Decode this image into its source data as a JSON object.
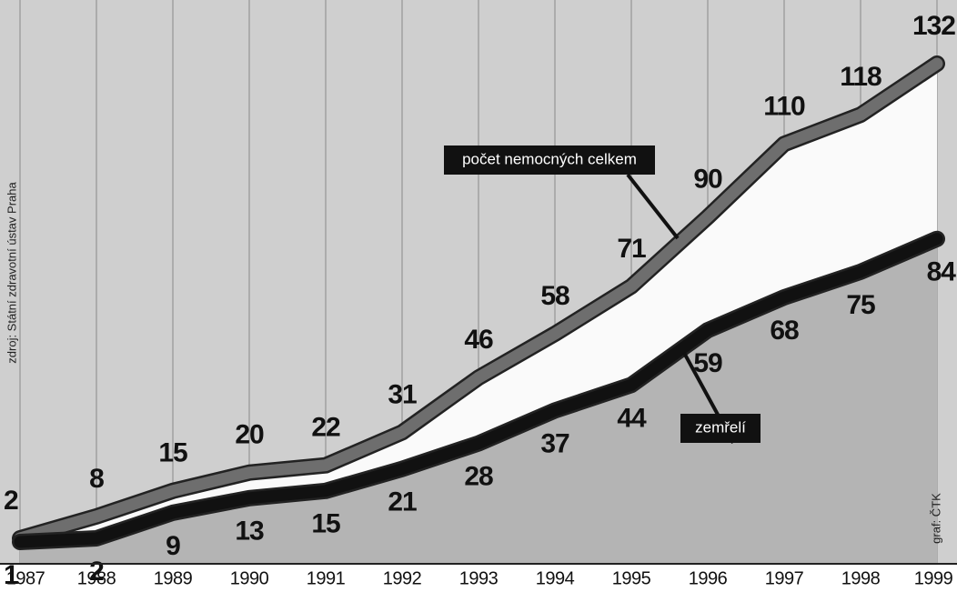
{
  "chart_data": {
    "type": "line",
    "categories": [
      "1987",
      "1988",
      "1989",
      "1990",
      "1991",
      "1992",
      "1993",
      "1994",
      "1995",
      "1996",
      "1997",
      "1998",
      "1999"
    ],
    "series": [
      {
        "name": "počet nemocných celkem",
        "color": "#6e6e6e",
        "values": [
          2,
          8,
          15,
          20,
          22,
          31,
          46,
          58,
          71,
          90,
          110,
          118,
          132
        ]
      },
      {
        "name": "zemřelí",
        "color": "#111111",
        "values": [
          1,
          2,
          9,
          13,
          15,
          21,
          28,
          37,
          44,
          59,
          68,
          75,
          84
        ]
      }
    ],
    "source": "zdroj: Státní zdravotní ústav Praha",
    "credit": "graf: ČTK"
  }
}
